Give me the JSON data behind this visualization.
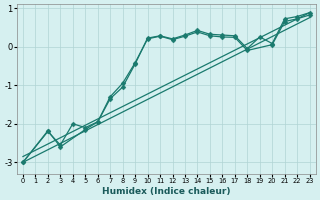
{
  "xlabel": "Humidex (Indice chaleur)",
  "bg_color": "#d6f0f0",
  "line_color": "#1a7a6e",
  "grid_color": "#b0d4d4",
  "xlim": [
    -0.5,
    23.5
  ],
  "ylim": [
    -3.3,
    1.1
  ],
  "yticks": [
    -3,
    -2,
    -1,
    0,
    1
  ],
  "xticks": [
    0,
    1,
    2,
    3,
    4,
    5,
    6,
    7,
    8,
    9,
    10,
    11,
    12,
    13,
    14,
    15,
    16,
    17,
    18,
    19,
    20,
    21,
    22,
    23
  ],
  "curve1_markers": {
    "x": [
      0,
      2,
      3,
      4,
      5,
      6,
      7,
      8,
      9,
      10,
      11,
      12,
      13,
      14,
      15,
      16,
      17,
      18,
      19,
      20,
      21,
      22,
      23
    ],
    "y": [
      -3.0,
      -2.2,
      -2.55,
      -2.0,
      -2.1,
      -1.95,
      -1.35,
      -1.05,
      -0.45,
      0.22,
      0.28,
      0.2,
      0.3,
      0.42,
      0.32,
      0.3,
      0.28,
      -0.05,
      0.25,
      0.08,
      0.72,
      0.78,
      0.88
    ]
  },
  "curve2_markers": {
    "x": [
      0,
      2,
      3,
      5,
      6,
      7,
      8,
      9,
      10,
      11,
      12,
      13,
      14,
      15,
      16,
      17,
      18,
      20,
      21,
      22,
      23
    ],
    "y": [
      -3.0,
      -2.18,
      -2.6,
      -2.15,
      -1.95,
      -1.3,
      -0.95,
      -0.42,
      0.2,
      0.27,
      0.18,
      0.27,
      0.38,
      0.28,
      0.25,
      0.24,
      -0.1,
      0.05,
      0.65,
      0.72,
      0.82
    ]
  },
  "straight1": {
    "x": [
      0,
      23
    ],
    "y": [
      -3.0,
      0.75
    ]
  },
  "straight2": {
    "x": [
      0,
      23
    ],
    "y": [
      -2.85,
      0.88
    ]
  }
}
